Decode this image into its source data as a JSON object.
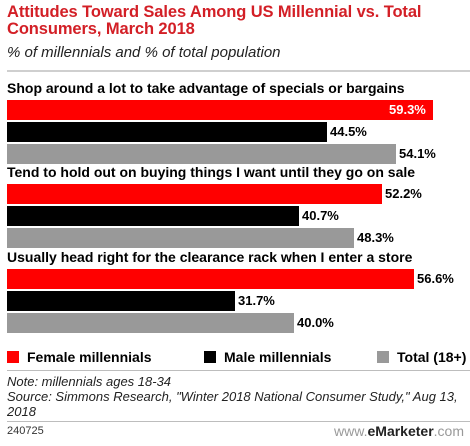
{
  "header": {
    "title": "Attitudes Toward Sales Among US Millennial vs. Total Consumers, March 2018",
    "subtitle": "% of millennials and % of total population"
  },
  "chart_data": {
    "type": "bar",
    "orientation": "horizontal",
    "title": "Attitudes Toward Sales Among US Millennial vs. Total Consumers, March 2018",
    "subtitle": "% of millennials and % of total population",
    "categories": [
      "Shop around a lot to take advantage of specials or bargains",
      "Tend to hold out on buying things I want until they go on sale",
      "Usually head right for the clearance rack when I enter a store"
    ],
    "series": [
      {
        "name": "Female millennials",
        "color": "#ff0000",
        "values": [
          59.3,
          52.2,
          56.6
        ],
        "labels": [
          "59.3%",
          "52.2%",
          "56.6%"
        ]
      },
      {
        "name": "Male millennials",
        "color": "#000000",
        "values": [
          44.5,
          40.7,
          31.7
        ],
        "labels": [
          "44.5%",
          "40.7%",
          "31.7%"
        ]
      },
      {
        "name": "Total (18+)",
        "color": "#999999",
        "values": [
          54.1,
          48.3,
          40.0
        ],
        "labels": [
          "54.1%",
          "48.3%",
          "40.0%"
        ]
      }
    ],
    "xlim": [
      0,
      59.3
    ],
    "grid": false,
    "legend_position": "bottom"
  },
  "footer": {
    "note": "Note: millennials ages 18-34",
    "source": "Source: Simmons Research, \"Winter 2018 National Consumer Study,\" Aug 13, 2018",
    "chart_id": "240725",
    "logo_prefix": "www.",
    "logo_brand": "eMarketer",
    "logo_suffix": ".com"
  }
}
